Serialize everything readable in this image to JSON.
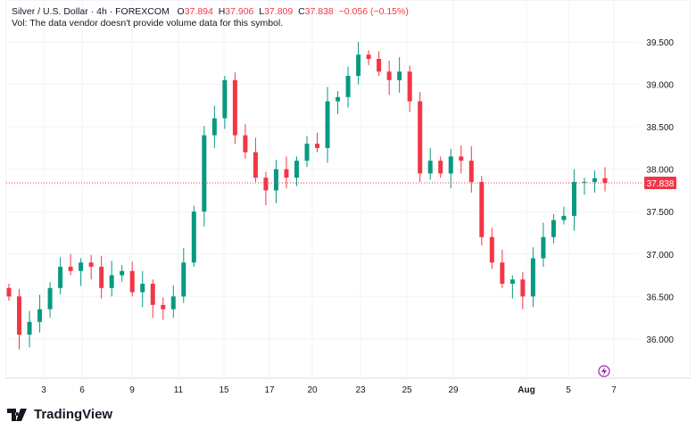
{
  "header": {
    "symbol": "Silver / U.S. Dollar · 4h · FOREXCOM",
    "o_label": "O",
    "o": "37.894",
    "h_label": "H",
    "h": "37.906",
    "l_label": "L",
    "l": "37.809",
    "c_label": "C",
    "c": "37.838",
    "change": "−0.056 (−0.15%)",
    "volume_note": "Vol: The data vendor doesn't provide volume data for this symbol."
  },
  "logo": "TradingView",
  "colors": {
    "up": "#089981",
    "down": "#f23645",
    "grid": "#f0f3fa",
    "accent": "#9c27b0"
  },
  "chart_data": {
    "type": "candlestick",
    "title": "Silver / U.S. Dollar · 4h · FOREXCOM",
    "ylim": [
      35.6,
      39.75
    ],
    "y_ticks": [
      "39.500",
      "39.000",
      "38.500",
      "38.000",
      "37.500",
      "37.000",
      "36.500",
      "36.000"
    ],
    "x_ticks": [
      "3",
      "6",
      "9",
      "11",
      "15",
      "17",
      "20",
      "23",
      "25",
      "29",
      "Aug",
      "5",
      "7"
    ],
    "last_price": "37.838",
    "first_open": 36.6,
    "closes": [
      36.5,
      36.05,
      36.2,
      36.35,
      36.6,
      36.85,
      36.8,
      36.9,
      36.85,
      36.6,
      36.75,
      36.8,
      36.55,
      36.65,
      36.4,
      36.35,
      36.5,
      36.9,
      37.5,
      38.4,
      38.6,
      39.05,
      38.4,
      38.2,
      37.9,
      37.75,
      38.0,
      37.9,
      38.1,
      38.3,
      38.25,
      38.8,
      38.85,
      39.1,
      39.35,
      39.3,
      39.15,
      39.05,
      39.15,
      38.8,
      37.95,
      38.1,
      37.95,
      38.15,
      38.1,
      37.85,
      37.2,
      36.9,
      36.65,
      36.7,
      36.5,
      36.95,
      37.2,
      37.4,
      37.45,
      37.85,
      37.85,
      37.894,
      37.838
    ]
  }
}
